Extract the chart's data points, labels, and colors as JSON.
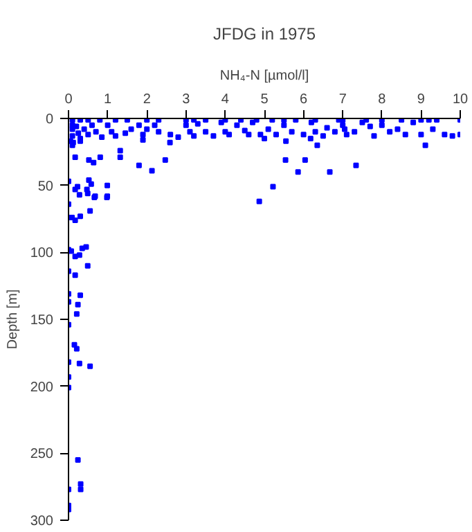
{
  "chart_data": {
    "type": "scatter",
    "title": "JFDG in 1975",
    "xlabel": "NH₄-N [µmol/l]",
    "ylabel": "Depth [m]",
    "xlim": [
      0,
      10
    ],
    "xticks": [
      0,
      1,
      2,
      3,
      4,
      5,
      6,
      7,
      8,
      9,
      10
    ],
    "ylim": [
      300,
      0
    ],
    "yticks": [
      0,
      50,
      100,
      150,
      200,
      250,
      300
    ],
    "grid": false,
    "marker": "square",
    "series": [
      {
        "color": "#0000ff",
        "x": [
          0.1,
          0.3,
          0.5,
          0.8,
          1.2,
          1.5,
          2.0,
          2.3,
          3.0,
          3.2,
          3.5,
          4.0,
          4.4,
          4.8,
          5.2,
          5.5,
          5.8,
          6.3,
          6.9,
          7.0,
          7.6,
          8.0,
          8.5,
          9.0,
          9.2,
          9.4,
          10.0,
          0.1,
          0.1,
          0.1,
          0.2,
          0.25,
          0.3,
          0.4,
          0.5,
          0.6,
          0.7,
          0.85,
          1.0,
          1.1,
          1.2,
          1.45,
          1.6,
          1.8,
          1.9,
          2.0,
          1.9,
          2.2,
          2.3,
          2.6,
          2.8,
          3.0,
          3.1,
          3.2,
          3.3,
          3.5,
          3.7,
          3.9,
          4.0,
          4.1,
          4.3,
          4.5,
          4.6,
          4.7,
          4.9,
          5.0,
          5.1,
          5.3,
          5.5,
          5.55,
          5.7,
          6.0,
          6.2,
          6.3,
          6.5,
          6.6,
          6.8,
          7.0,
          7.05,
          7.1,
          7.3,
          7.5,
          7.7,
          8.0,
          8.2,
          8.4,
          8.6,
          8.8,
          9.0,
          9.3,
          9.6,
          9.8,
          10.0,
          0.05,
          0.1,
          0.3,
          1.32,
          1.32,
          1.8,
          2.13,
          2.47,
          2.59,
          5.54,
          5.86,
          6.04,
          6.67,
          7.34,
          5.22,
          4.87,
          9.11,
          6.18,
          6.35,
          7.8,
          0.17,
          0.52,
          0.81,
          0.64,
          0.12,
          0.52,
          0.58,
          0.47,
          0.99,
          0.99,
          0.68,
          0.23,
          0,
          0,
          0.17,
          0.28,
          0.49,
          0.66,
          0.98,
          0,
          0.09,
          0.17,
          0.3,
          0.55,
          0,
          0.07,
          0.35,
          0.45,
          0.17,
          0.28,
          0.49,
          0,
          0.17,
          0,
          0.3,
          0,
          0.24,
          0.21,
          0,
          0.15,
          0.21,
          0,
          0.28,
          0.55,
          0,
          0,
          0.24,
          0,
          0.31,
          0.31,
          0,
          0
        ],
        "values": [
          1,
          1,
          1,
          1,
          1,
          1,
          1,
          1,
          1,
          1,
          1,
          1,
          1,
          1,
          1,
          1,
          1,
          1,
          1,
          1,
          1,
          1,
          1,
          1,
          1,
          1,
          1,
          5,
          8,
          13,
          6,
          11,
          15,
          8,
          12,
          5,
          10,
          14,
          5,
          10,
          13,
          11,
          8,
          5,
          12,
          8,
          16,
          5,
          10,
          12,
          14,
          5,
          10,
          13,
          4,
          10,
          13,
          3,
          10,
          12,
          5,
          9,
          12,
          3,
          12,
          15,
          8,
          12,
          5,
          17,
          10,
          12,
          3,
          10,
          13,
          7,
          10,
          5,
          8,
          12,
          10,
          3,
          6,
          5,
          10,
          8,
          12,
          3,
          12,
          8,
          12,
          13,
          12,
          17,
          20,
          17,
          24,
          29,
          35,
          39,
          31,
          18,
          31,
          40,
          31,
          40,
          35,
          51,
          62,
          20,
          15,
          20,
          13,
          29,
          31,
          29,
          33,
          18,
          46,
          49,
          53,
          50,
          58,
          58,
          51,
          47,
          64,
          53,
          57,
          56,
          59,
          59,
          74,
          74,
          76,
          73,
          69,
          98,
          99,
          97,
          96,
          103,
          102,
          110,
          114,
          117,
          131,
          132,
          137,
          139,
          146,
          154,
          169,
          172,
          182,
          183,
          185,
          193,
          201,
          255,
          277,
          273,
          277,
          289,
          292
        ]
      }
    ]
  }
}
